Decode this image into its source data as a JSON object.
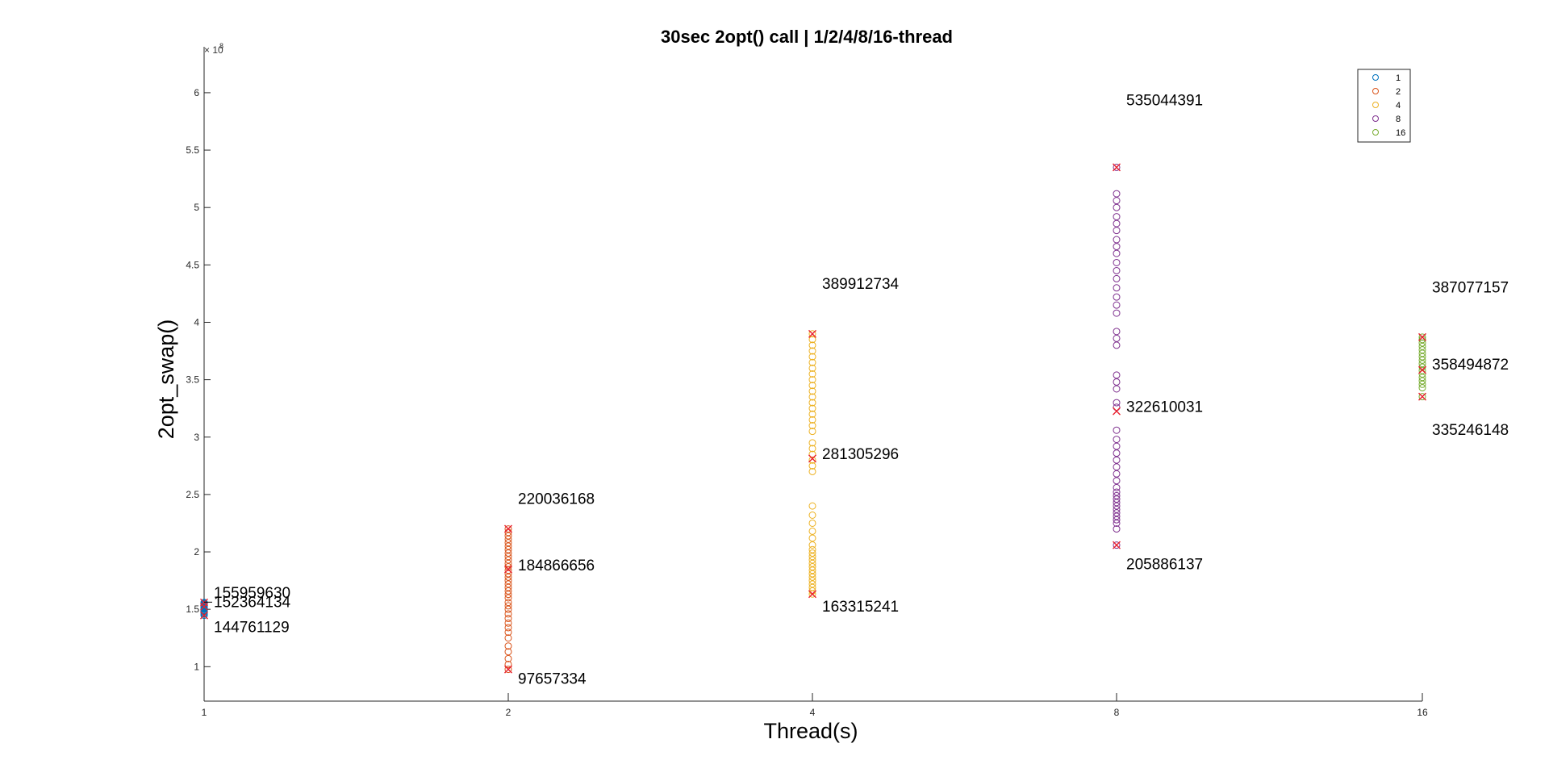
{
  "chart_data": {
    "type": "scatter",
    "title": "30sec 2opt() call | 1/2/4/8/16-thread",
    "xlabel": "Thread(s)",
    "ylabel": "2opt_swap()",
    "exponent_base": "× 10",
    "exponent_power": "8",
    "x_scale": "categorical",
    "xticks": [
      "1",
      "2",
      "4",
      "8",
      "16"
    ],
    "ylim": [
      0.7,
      6.4
    ],
    "yticks": [
      1,
      1.5,
      2,
      2.5,
      3,
      3.5,
      4,
      4.5,
      5,
      5.5,
      6
    ],
    "ytick_labels": [
      "1",
      "1.5",
      "2",
      "2.5",
      "3",
      "3.5",
      "4",
      "4.5",
      "5",
      "5.5",
      "6"
    ],
    "y_multiplier": "1e8",
    "grid": false,
    "legend_position": "top-right",
    "marker": "circle",
    "series": [
      {
        "name": "1",
        "x": "1",
        "color": "#0072BD",
        "values": [
          1.448,
          1.46,
          1.47,
          1.48,
          1.49,
          1.5,
          1.505,
          1.51,
          1.515,
          1.52,
          1.525,
          1.53,
          1.535,
          1.54,
          1.545,
          1.55,
          1.556,
          1.559
        ]
      },
      {
        "name": "2",
        "x": "2",
        "color": "#D95319",
        "values": [
          0.977,
          1.02,
          1.07,
          1.13,
          1.18,
          1.25,
          1.3,
          1.34,
          1.38,
          1.42,
          1.46,
          1.5,
          1.53,
          1.56,
          1.6,
          1.63,
          1.66,
          1.69,
          1.72,
          1.75,
          1.78,
          1.81,
          1.84,
          1.87,
          1.9,
          1.93,
          1.96,
          1.99,
          2.02,
          2.05,
          2.08,
          2.11,
          2.14,
          2.17,
          2.2
        ]
      },
      {
        "name": "4",
        "x": "4",
        "color": "#EDB120",
        "values": [
          1.633,
          1.66,
          1.69,
          1.72,
          1.75,
          1.78,
          1.81,
          1.84,
          1.87,
          1.9,
          1.93,
          1.96,
          1.99,
          2.02,
          2.06,
          2.12,
          2.18,
          2.25,
          2.32,
          2.4,
          2.7,
          2.75,
          2.8,
          2.85,
          2.9,
          2.95,
          3.05,
          3.1,
          3.15,
          3.2,
          3.25,
          3.3,
          3.35,
          3.4,
          3.45,
          3.5,
          3.55,
          3.6,
          3.65,
          3.7,
          3.75,
          3.8,
          3.85,
          3.9
        ]
      },
      {
        "name": "8",
        "x": "8",
        "color": "#7E2F8E",
        "values": [
          2.059,
          2.2,
          2.25,
          2.28,
          2.31,
          2.34,
          2.37,
          2.4,
          2.43,
          2.46,
          2.49,
          2.52,
          2.56,
          2.62,
          2.68,
          2.74,
          2.8,
          2.86,
          2.92,
          2.98,
          3.06,
          3.26,
          3.3,
          3.42,
          3.48,
          3.54,
          3.8,
          3.86,
          3.92,
          4.08,
          4.15,
          4.22,
          4.3,
          4.38,
          4.45,
          4.52,
          4.6,
          4.66,
          4.72,
          4.8,
          4.86,
          4.92,
          5.0,
          5.06,
          5.12,
          5.35
        ]
      },
      {
        "name": "16",
        "x": "16",
        "color": "#77AC30",
        "values": [
          3.352,
          3.43,
          3.46,
          3.49,
          3.52,
          3.55,
          3.58,
          3.61,
          3.64,
          3.67,
          3.7,
          3.73,
          3.76,
          3.79,
          3.82,
          3.85,
          3.871
        ]
      }
    ],
    "extrema_markers": {
      "marker": "x",
      "color": "#E8212F",
      "points": [
        {
          "x": "1",
          "values": [
            1.4476,
            1.5236,
            1.5596
          ]
        },
        {
          "x": "2",
          "values": [
            0.9766,
            1.8487,
            2.2004
          ]
        },
        {
          "x": "4",
          "values": [
            1.6332,
            2.8131,
            3.8991
          ]
        },
        {
          "x": "8",
          "values": [
            2.0589,
            3.2261,
            5.3504
          ]
        },
        {
          "x": "16",
          "values": [
            3.3525,
            3.5849,
            3.8708
          ]
        }
      ]
    },
    "annotations": [
      {
        "x": "1",
        "label_y": 1.6,
        "text": "155959630"
      },
      {
        "x": "1",
        "label_y": 1.52,
        "text": "152364134",
        "with_tick": true
      },
      {
        "x": "1",
        "label_y": 1.3,
        "text": "144761129"
      },
      {
        "x": "2",
        "label_y": 2.42,
        "text": "220036168"
      },
      {
        "x": "2",
        "label_y": 1.84,
        "text": "184866656"
      },
      {
        "x": "2",
        "label_y": 0.85,
        "text": "97657334"
      },
      {
        "x": "4",
        "label_y": 4.29,
        "text": "389912734"
      },
      {
        "x": "4",
        "label_y": 2.81,
        "text": "281305296"
      },
      {
        "x": "4",
        "label_y": 1.48,
        "text": "163315241"
      },
      {
        "x": "8",
        "label_y": 5.89,
        "text": "535044391"
      },
      {
        "x": "8",
        "label_y": 3.22,
        "text": "322610031"
      },
      {
        "x": "8",
        "label_y": 1.85,
        "text": "205886137"
      },
      {
        "x": "16",
        "label_y": 4.26,
        "text": "387077157"
      },
      {
        "x": "16",
        "label_y": 3.59,
        "text": "358494872"
      },
      {
        "x": "16",
        "label_y": 3.02,
        "text": "335246148"
      }
    ]
  }
}
